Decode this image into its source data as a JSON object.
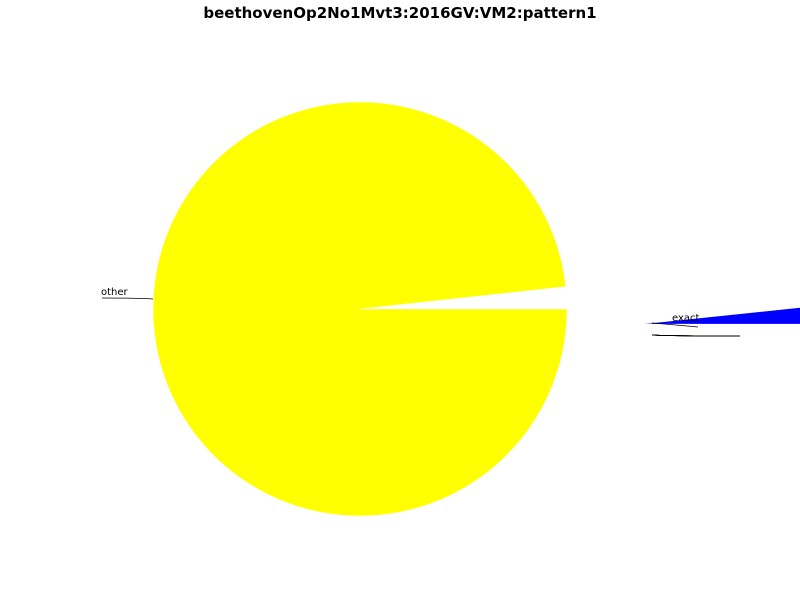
{
  "chart_data": {
    "type": "pie",
    "title": "beethovenOp2No1Mvt3:2016GV:VM2:pattern1",
    "slices": [
      {
        "label": "exact",
        "value": 0.0166,
        "color": "#0000ff",
        "exploded": true
      },
      {
        "label": "",
        "value": 0.0001,
        "color": "#0000ff",
        "exploded": false
      },
      {
        "label": "",
        "value": 0.0001,
        "color": "#0000ff",
        "exploded": false
      },
      {
        "label": "",
        "value": 0.0001,
        "color": "#0000ff",
        "exploded": false
      },
      {
        "label": "",
        "value": 0.0001,
        "color": "#0000ff",
        "exploded": false
      },
      {
        "label": "",
        "value": 0.0001,
        "color": "#0000ff",
        "exploded": false
      },
      {
        "label": "",
        "value": 0.0001,
        "color": "#0000ff",
        "exploded": false
      },
      {
        "label": "other",
        "value": 0.9829,
        "color": "#ffff00",
        "exploded": false
      }
    ],
    "start_angle_deg": 0,
    "direction": "counterclockwise",
    "legend": false
  }
}
